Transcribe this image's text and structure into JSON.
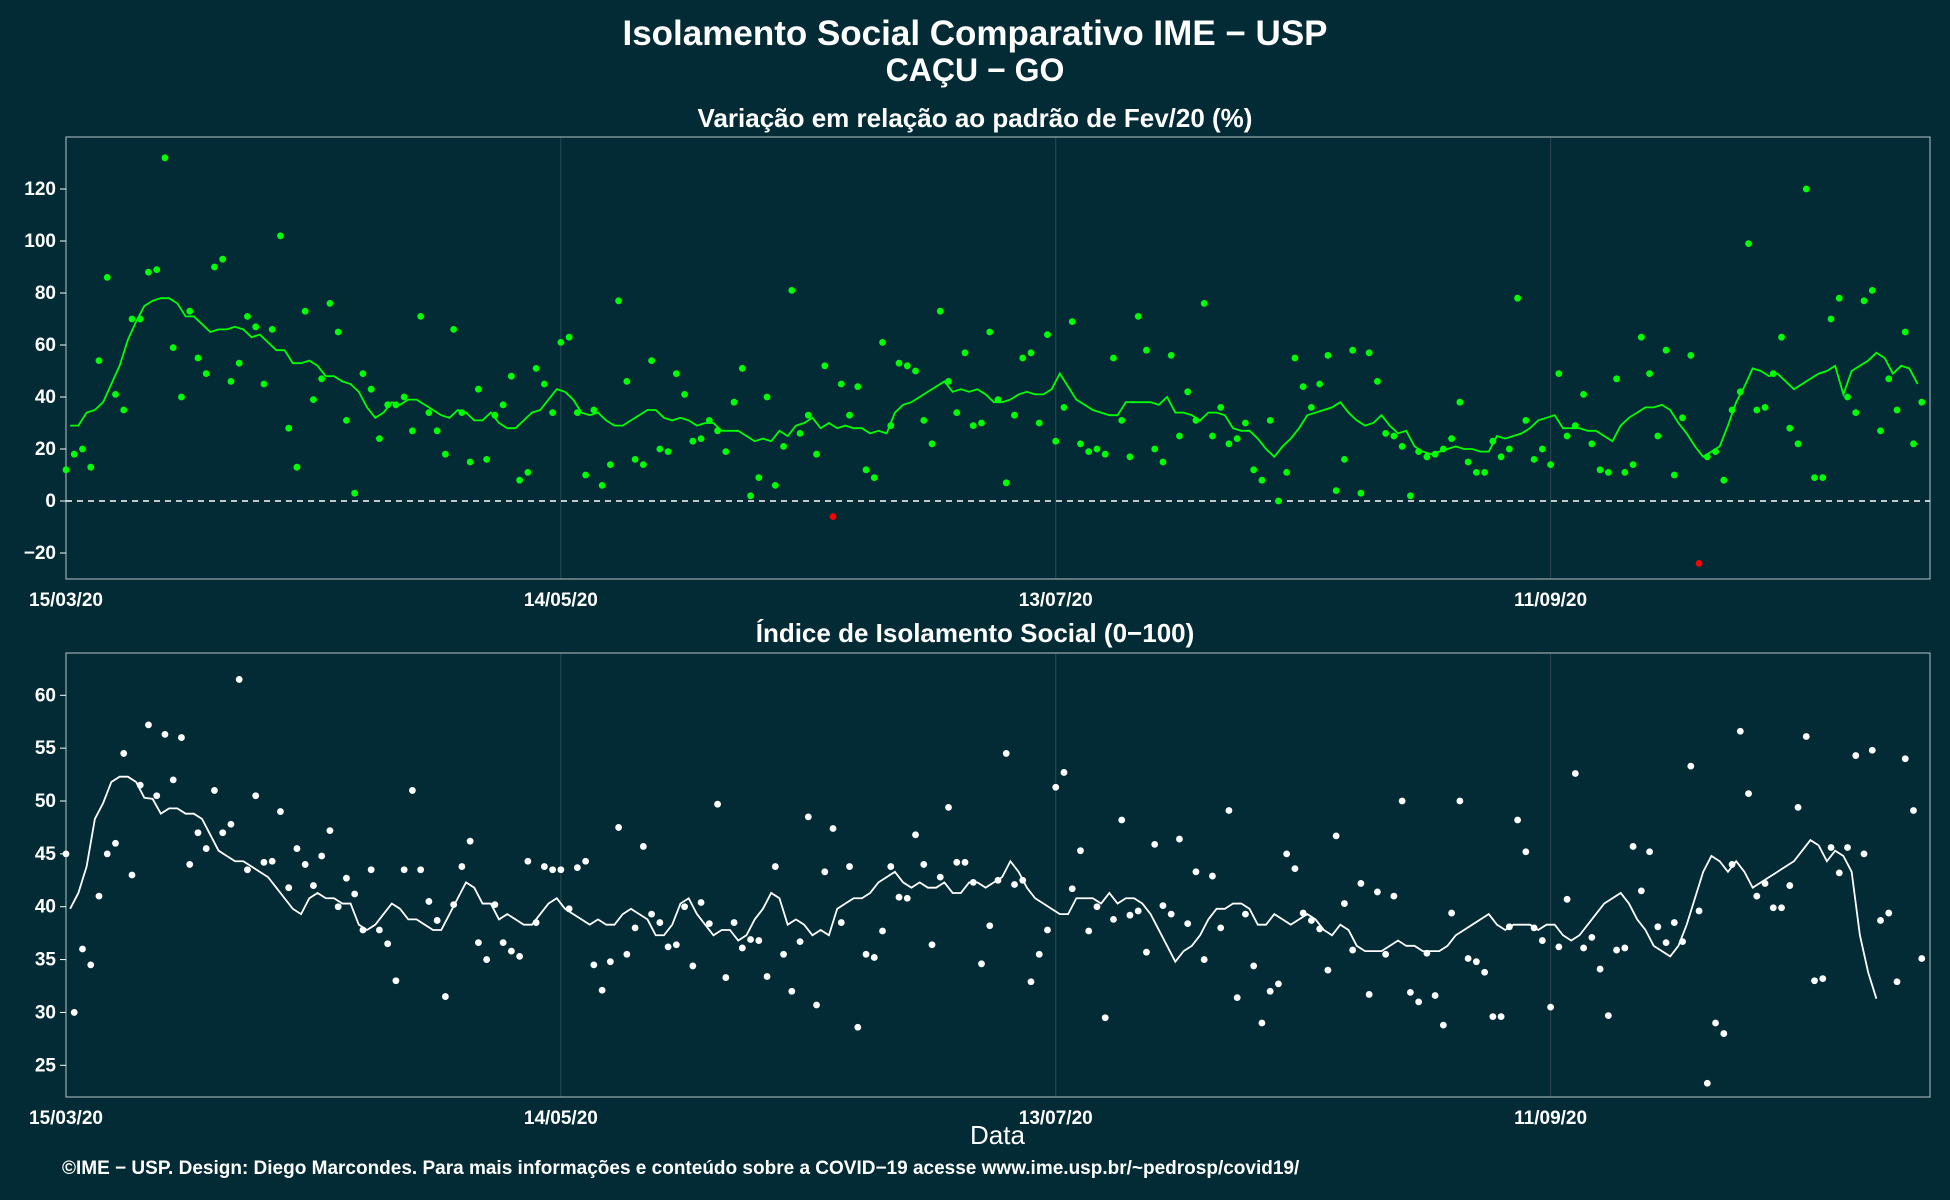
{
  "header": {
    "title": "Isolamento Social Comparativo IME − USP",
    "subtitle": "CAÇU − GO"
  },
  "footer": {
    "credit": "©IME − USP. Design: Diego Marcondes. Para mais informações e conteúdo sobre a COVID−19 acesse www.ime.usp.br/~pedrosp/covid19/"
  },
  "colors": {
    "background": "#022b35",
    "positive_points": "#00ff00",
    "negative_points": "#ff0000",
    "index_points": "#ffffff",
    "grid": "#2c4a53",
    "frame": "#9aaab0"
  },
  "chart_data": [
    {
      "type": "scatter",
      "title": "Variação em relação ao padrão de Fev/20 (%)",
      "xlabel": "",
      "ylabel": "",
      "x_start": "15/03/20",
      "x_ticks": [
        "15/03/20",
        "14/05/20",
        "13/07/20",
        "11/09/20"
      ],
      "xlim_days": [
        0,
        226
      ],
      "ylim": [
        -30,
        140
      ],
      "y_ticks": [
        -20,
        0,
        20,
        40,
        60,
        80,
        100,
        120
      ],
      "reference_line": 0,
      "series": [
        {
          "kind": "daily-points",
          "values": [
            12,
            18,
            20,
            13,
            54,
            86,
            41,
            35,
            70,
            70,
            88,
            89,
            132,
            59,
            40,
            73,
            55,
            49,
            90,
            93,
            46,
            53,
            71,
            67,
            45,
            66,
            102,
            28,
            13,
            73,
            39,
            47,
            76,
            65,
            31,
            3,
            49,
            43,
            24,
            37,
            37,
            40,
            27,
            71,
            34,
            27,
            18,
            66,
            34,
            15,
            43,
            16,
            33,
            37,
            48,
            8,
            11,
            51,
            45,
            34,
            61,
            63,
            34,
            10,
            35,
            6,
            14,
            77,
            46,
            16,
            14,
            54,
            20,
            19,
            49,
            41,
            23,
            24,
            31,
            27,
            19,
            38,
            51,
            2,
            9,
            40,
            6,
            21,
            81,
            26,
            33,
            18,
            52,
            -6,
            45,
            33,
            44,
            12,
            9,
            61,
            29,
            53,
            52,
            50,
            31,
            22,
            73,
            46,
            34,
            57,
            29,
            30,
            65,
            39,
            7,
            33,
            55,
            57,
            30,
            64,
            23,
            36,
            69,
            22,
            19,
            20,
            18,
            55,
            31,
            17,
            71,
            58,
            20,
            15,
            56,
            25,
            42,
            31,
            76,
            25,
            36,
            22,
            24,
            30,
            12,
            8,
            31,
            0,
            11,
            55,
            44,
            36,
            45,
            56,
            4,
            16,
            58,
            3,
            57,
            46,
            26,
            25,
            21,
            2,
            19,
            17,
            18,
            20,
            24,
            38,
            15,
            11,
            11,
            23,
            17,
            20,
            78,
            31,
            16,
            20,
            14,
            49,
            25,
            29,
            41,
            22,
            12,
            11,
            47,
            11,
            14,
            63,
            49,
            25,
            58,
            10,
            32,
            56,
            -24,
            17,
            19,
            8,
            35,
            42,
            99,
            35,
            36,
            49,
            63,
            28,
            22,
            120,
            9,
            9,
            70,
            78,
            40,
            34,
            77,
            81,
            27,
            47,
            35,
            65,
            22,
            38
          ]
        },
        {
          "kind": "moving-average",
          "values": [
            29,
            29,
            34,
            35,
            38,
            45,
            52,
            62,
            69,
            75,
            77,
            78,
            78,
            76,
            71,
            71,
            68,
            65,
            66,
            66,
            67,
            66,
            63,
            64,
            61,
            58,
            58,
            53,
            53,
            54,
            52,
            48,
            48,
            46,
            45,
            42,
            36,
            32,
            34,
            38,
            37,
            39,
            39,
            37,
            35,
            33,
            32,
            35,
            34,
            31,
            31,
            34,
            30,
            28,
            28,
            31,
            34,
            35,
            39,
            43,
            42,
            39,
            34,
            33,
            34,
            31,
            29,
            29,
            31,
            33,
            35,
            35,
            32,
            31,
            32,
            31,
            29,
            30,
            30,
            27,
            27,
            27,
            25,
            23,
            24,
            23,
            27,
            25,
            29,
            30,
            32,
            28,
            30,
            28,
            29,
            28,
            28,
            26,
            27,
            26,
            34,
            37,
            38,
            40,
            42,
            44,
            46,
            42,
            43,
            42,
            43,
            41,
            38,
            38,
            39,
            41,
            42,
            41,
            41,
            43,
            49,
            44,
            39,
            37,
            35,
            34,
            33,
            33,
            38,
            38,
            38,
            38,
            37,
            40,
            34,
            34,
            33,
            31,
            34,
            34,
            33,
            28,
            27,
            27,
            24,
            20,
            17,
            21,
            24,
            28,
            33,
            34,
            35,
            36,
            38,
            34,
            31,
            29,
            30,
            33,
            29,
            26,
            27,
            21,
            19,
            18,
            19,
            20,
            21,
            20,
            20,
            19,
            19,
            25,
            24,
            25,
            26,
            28,
            31,
            32,
            33,
            28,
            28,
            28,
            27,
            27,
            25,
            23,
            29,
            32,
            34,
            36,
            36,
            37,
            35,
            30,
            26,
            21,
            17,
            19,
            21,
            29,
            38,
            44,
            51,
            50,
            48,
            49,
            46,
            43,
            45,
            47,
            49,
            50,
            52,
            41,
            50,
            52,
            54,
            57,
            55,
            49,
            52,
            51,
            45
          ]
        }
      ]
    },
    {
      "type": "scatter",
      "title": "Índice de Isolamento Social (0−100)",
      "xlabel": "Data",
      "ylabel": "",
      "x_start": "15/03/20",
      "x_ticks": [
        "15/03/20",
        "14/05/20",
        "13/07/20",
        "11/09/20"
      ],
      "xlim_days": [
        0,
        226
      ],
      "ylim": [
        22,
        64
      ],
      "y_ticks": [
        25,
        30,
        35,
        40,
        45,
        50,
        55,
        60
      ],
      "series": [
        {
          "kind": "daily-points",
          "values": [
            45,
            30,
            36,
            34.5,
            41,
            45,
            46,
            54.5,
            43,
            51.5,
            57.2,
            50.5,
            56.3,
            52,
            56,
            44,
            47,
            45.5,
            51,
            47,
            47.8,
            61.5,
            43.5,
            50.5,
            44.2,
            44.3,
            49,
            41.8,
            45.5,
            44,
            42,
            44.8,
            47.2,
            40,
            42.7,
            41.2,
            37.8,
            43.5,
            37.8,
            36.5,
            33,
            43.5,
            51,
            43.5,
            40.5,
            38.7,
            31.5,
            40.2,
            43.8,
            46.2,
            36.6,
            35,
            40.2,
            36.6,
            35.8,
            35.3,
            44.3,
            38.5,
            43.8,
            43.5,
            43.5,
            39.8,
            43.7,
            44.3,
            34.5,
            32.1,
            34.8,
            47.5,
            35.5,
            38,
            45.7,
            39.3,
            38.5,
            36.2,
            36.4,
            40,
            34.4,
            40.4,
            38.4,
            49.7,
            33.3,
            38.5,
            36.1,
            36.9,
            36.8,
            33.4,
            43.8,
            35.5,
            32,
            36.7,
            48.5,
            30.7,
            43.3,
            47.4,
            38.5,
            43.8,
            28.6,
            35.5,
            35.2,
            37.7,
            43.8,
            40.9,
            40.8,
            46.8,
            44,
            36.4,
            42.8,
            49.4,
            44.2,
            44.2,
            42.3,
            34.6,
            38.2,
            42.5,
            54.5,
            42.1,
            42.5,
            32.9,
            35.5,
            37.8,
            51.3,
            52.7,
            41.7,
            45.3,
            37.7,
            40,
            29.5,
            38.8,
            48.2,
            39.2,
            39.6,
            35.7,
            45.9,
            40.1,
            39.3,
            46.4,
            38.4,
            43.3,
            35,
            42.9,
            38,
            49.1,
            31.4,
            39.3,
            34.4,
            29,
            32,
            32.7,
            45,
            43.6,
            39.4,
            38.7,
            37.9,
            34,
            46.7,
            40.3,
            35.9,
            42.2,
            31.7,
            41.4,
            35.5,
            41,
            50,
            31.9,
            31,
            35.6,
            31.6,
            28.8,
            39.4,
            50,
            35.1,
            34.8,
            33.8,
            29.6,
            29.6,
            38.1,
            48.2,
            45.2,
            38,
            36.8,
            30.5,
            36.2,
            40.7,
            52.6,
            36.1,
            37.1,
            34.1,
            29.7,
            35.9,
            36.1,
            45.7,
            41.5,
            45.2,
            38.1,
            36.6,
            38.5,
            36.7,
            53.3,
            39.6,
            23.3,
            29,
            28,
            44,
            56.6,
            50.7,
            41,
            42.2,
            39.9,
            39.9,
            42,
            49.4,
            56.1,
            33,
            33.2,
            45.6,
            43.2,
            45.6,
            54.3,
            45,
            54.8,
            38.7,
            39.4,
            32.9,
            54,
            49.1,
            35.1
          ]
        },
        {
          "kind": "moving-average",
          "values": [
            39.8,
            41.3,
            43.8,
            48.3,
            49.8,
            51.8,
            52.3,
            52.3,
            51.8,
            50.3,
            50.2,
            48.8,
            49.3,
            49.3,
            48.8,
            48.8,
            48.3,
            46.8,
            45.3,
            44.8,
            44.3,
            44.3,
            43.8,
            43.3,
            42.8,
            41.8,
            40.8,
            39.8,
            39.3,
            40.8,
            41.3,
            40.8,
            40.8,
            40.3,
            40.3,
            38.3,
            37.8,
            38.3,
            39.3,
            40.3,
            39.8,
            38.8,
            38.8,
            38.3,
            37.8,
            37.8,
            39.3,
            40.8,
            42.3,
            41.8,
            40.3,
            40.3,
            38.8,
            39.3,
            38.8,
            38.3,
            38.3,
            39.3,
            40.3,
            40.8,
            39.8,
            39.3,
            38.8,
            38.3,
            38.8,
            38.3,
            38.3,
            39.3,
            39.8,
            39.3,
            38.8,
            37.3,
            37.3,
            38.3,
            40.3,
            40.8,
            39.3,
            38.3,
            37.3,
            37.8,
            37.8,
            36.8,
            37.3,
            38.8,
            39.8,
            41.3,
            40.8,
            38.3,
            38.8,
            38.3,
            37.3,
            37.8,
            37.3,
            39.8,
            40.3,
            40.8,
            40.8,
            41.3,
            42.3,
            42.8,
            43.3,
            42.3,
            41.8,
            42.3,
            41.8,
            41.8,
            42.3,
            41.3,
            41.3,
            42.3,
            42.3,
            41.8,
            42.3,
            42.8,
            44.3,
            43.3,
            41.8,
            40.8,
            40.3,
            39.8,
            39.3,
            39.3,
            40.8,
            40.8,
            40.8,
            40.3,
            41.3,
            40.3,
            40.8,
            40.8,
            40.3,
            39.3,
            37.8,
            36.3,
            34.8,
            35.8,
            36.3,
            37.3,
            38.8,
            39.8,
            39.8,
            40.3,
            40.3,
            39.8,
            38.3,
            38.3,
            39.3,
            38.8,
            38.3,
            38.8,
            39.3,
            38.8,
            37.8,
            37.3,
            38.3,
            37.8,
            36.3,
            35.8,
            35.8,
            35.8,
            36.3,
            36.8,
            36.3,
            36.3,
            35.8,
            35.8,
            35.8,
            36.3,
            37.3,
            37.8,
            38.3,
            38.8,
            39.3,
            38.3,
            37.8,
            38.3,
            38.3,
            38.3,
            37.8,
            38.3,
            38.3,
            37.3,
            36.8,
            37.3,
            38.3,
            39.3,
            40.3,
            40.8,
            41.3,
            40.3,
            38.8,
            37.8,
            36.3,
            35.8,
            35.3,
            36.3,
            38.3,
            40.8,
            43.3,
            44.8,
            44.3,
            43.3,
            44.3,
            43.3,
            41.8,
            42.3,
            42.8,
            43.3,
            43.8,
            44.3,
            45.3,
            46.3,
            45.8,
            44.3,
            45.3,
            44.8,
            43.3,
            37.3,
            33.8,
            31.3
          ]
        }
      ]
    }
  ]
}
